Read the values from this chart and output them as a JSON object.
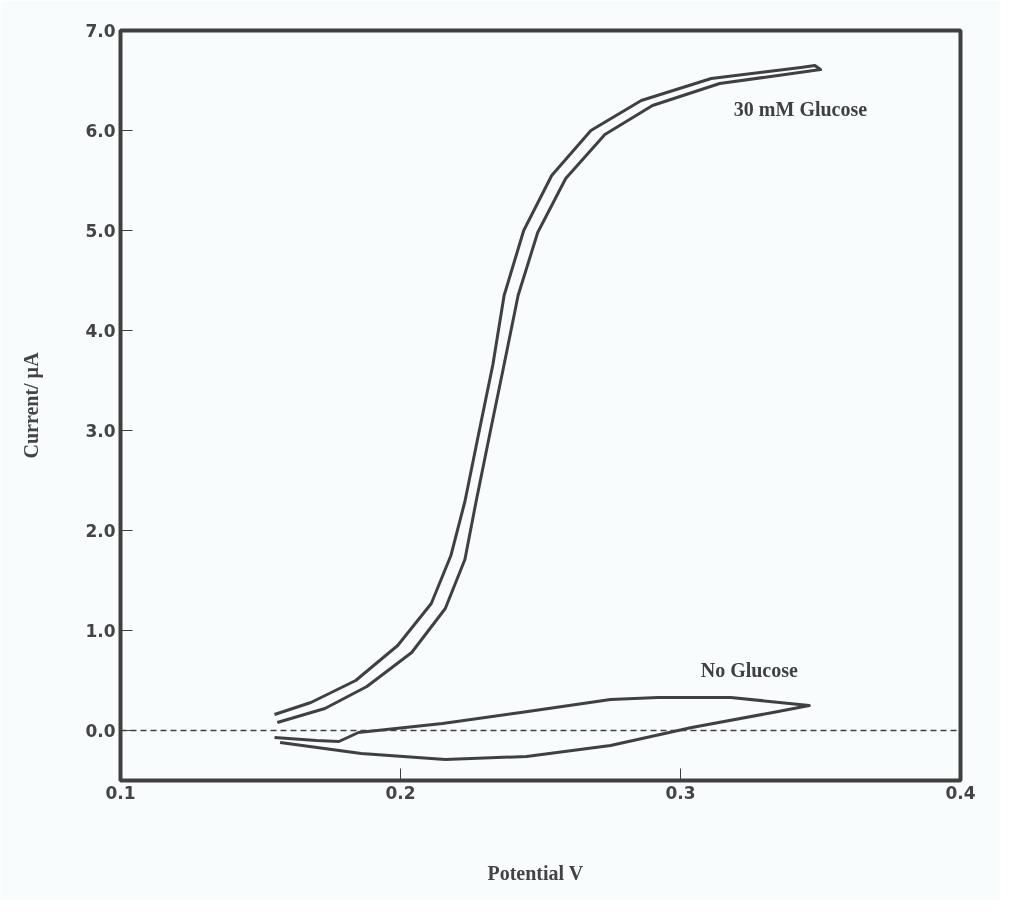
{
  "chart_data": {
    "type": "line",
    "xlabel": "Potential   V",
    "ylabel": "Current/ µA",
    "xlim": [
      0.1,
      0.4
    ],
    "ylim": [
      -0.5,
      7.0
    ],
    "xticks": [
      0.1,
      0.2,
      0.3,
      0.4
    ],
    "yticks": [
      {
        "value": 0,
        "label": "0.0"
      },
      {
        "value": 1,
        "label": "1.0"
      },
      {
        "value": 2,
        "label": "2.0"
      },
      {
        "value": 3,
        "label": "3.0"
      },
      {
        "value": 4,
        "label": "4.0"
      },
      {
        "value": 5,
        "label": "5.0"
      },
      {
        "value": 6,
        "label": "6.0"
      },
      {
        "value": 7,
        "label": "7.0"
      }
    ],
    "grid": false,
    "marker": "none",
    "line_style": "solid",
    "series": [
      {
        "name": "30 mM Glucose",
        "color": "#404040",
        "x": [
          0.156,
          0.173,
          0.188,
          0.204,
          0.216,
          0.223,
          0.227,
          0.232,
          0.237,
          0.242,
          0.249,
          0.259,
          0.273,
          0.29,
          0.314,
          0.345,
          0.35,
          0.348,
          0.343,
          0.311,
          0.286,
          0.268,
          0.254,
          0.244,
          0.237,
          0.233,
          0.228,
          0.223,
          0.218,
          0.211,
          0.199,
          0.184,
          0.168,
          0.155
        ],
        "values": [
          0.08,
          0.22,
          0.44,
          0.78,
          1.22,
          1.71,
          2.29,
          2.98,
          3.66,
          4.35,
          4.98,
          5.52,
          5.96,
          6.25,
          6.47,
          6.59,
          6.61,
          6.65,
          6.63,
          6.52,
          6.3,
          6.0,
          5.55,
          5.0,
          4.35,
          3.66,
          2.98,
          2.29,
          1.75,
          1.27,
          0.85,
          0.5,
          0.28,
          0.16
        ]
      },
      {
        "name": "No Glucose",
        "color": "#404040",
        "x": [
          0.155,
          0.17,
          0.178,
          0.185,
          0.215,
          0.243,
          0.275,
          0.292,
          0.318,
          0.346,
          0.333,
          0.304,
          0.275,
          0.245,
          0.216,
          0.186,
          0.157
        ],
        "values": [
          -0.07,
          -0.1,
          -0.11,
          -0.02,
          0.07,
          0.18,
          0.31,
          0.33,
          0.33,
          0.25,
          0.18,
          0.03,
          -0.15,
          -0.26,
          -0.29,
          -0.23,
          -0.12
        ]
      }
    ],
    "ref_lines": [
      {
        "axis": "y",
        "value": 0,
        "line_style": "dashed",
        "color": "#404040"
      }
    ]
  }
}
